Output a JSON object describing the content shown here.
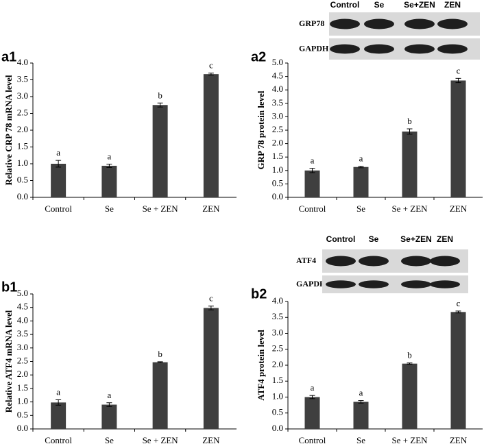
{
  "chart_data": [
    {
      "type": "bar",
      "panel": "a1",
      "ylabel": "Relative CRP 78 mRNA level",
      "categories": [
        "Control",
        "Se",
        "Se + ZEN",
        "ZEN"
      ],
      "values": [
        1.0,
        0.94,
        2.75,
        3.67
      ],
      "errors": [
        0.1,
        0.05,
        0.06,
        0.03
      ],
      "annotations": [
        "a",
        "a",
        "b",
        "c"
      ],
      "color": "#3f3f3f",
      "ylim": [
        0,
        4
      ],
      "yticks": [
        {
          "value": 0,
          "label": "0.0"
        },
        {
          "value": 0.5,
          "label": "0.5"
        },
        {
          "value": 1,
          "label": "1.0"
        },
        {
          "value": 1.5,
          "label": "1.5"
        },
        {
          "value": 2,
          "label": "2.0"
        },
        {
          "value": 2.5,
          "label": "2.5"
        },
        {
          "value": 3,
          "label": "3.0"
        },
        {
          "value": 3.5,
          "label": "3.5"
        },
        {
          "value": 4,
          "label": "4.0"
        }
      ]
    },
    {
      "type": "bar",
      "panel": "a2",
      "ylabel": "GRP 78 protein level",
      "categories": [
        "Control",
        "Se",
        "Se + ZEN",
        "ZEN"
      ],
      "values": [
        1.0,
        1.13,
        2.45,
        4.35
      ],
      "errors": [
        0.08,
        0.03,
        0.1,
        0.08
      ],
      "annotations": [
        "a",
        "a",
        "b",
        "c"
      ],
      "color": "#3f3f3f",
      "ylim": [
        0,
        5
      ],
      "yticks": [
        {
          "value": 0,
          "label": "0.0"
        },
        {
          "value": 0.5,
          "label": "0.5"
        },
        {
          "value": 1,
          "label": "1.0"
        },
        {
          "value": 1.5,
          "label": "1.5"
        },
        {
          "value": 2,
          "label": "2.0"
        },
        {
          "value": 2.5,
          "label": "2.5"
        },
        {
          "value": 3,
          "label": "3.0"
        },
        {
          "value": 3.5,
          "label": "3.5"
        },
        {
          "value": 4,
          "label": "4.0"
        },
        {
          "value": 4.5,
          "label": "4.5"
        },
        {
          "value": 5,
          "label": "5.0"
        }
      ],
      "blot": {
        "lanes": [
          "Control",
          "Se",
          "Se+ZEN",
          "ZEN"
        ],
        "rows": [
          "GRP78",
          "GAPDH"
        ]
      }
    },
    {
      "type": "bar",
      "panel": "b1",
      "ylabel": "Relative ATF4 mRNA level",
      "categories": [
        "Control",
        "Se",
        "Se + ZEN",
        "ZEN"
      ],
      "values": [
        0.98,
        0.9,
        2.47,
        4.48
      ],
      "errors": [
        0.1,
        0.07,
        0.02,
        0.07
      ],
      "annotations": [
        "a",
        "a",
        "b",
        "c"
      ],
      "color": "#3f3f3f",
      "ylim": [
        0,
        5
      ],
      "yticks": [
        {
          "value": 0,
          "label": "0.0"
        },
        {
          "value": 0.5,
          "label": "0.5"
        },
        {
          "value": 1,
          "label": "1.0"
        },
        {
          "value": 1.5,
          "label": "1.5"
        },
        {
          "value": 2,
          "label": "2.0"
        },
        {
          "value": 2.5,
          "label": "2.5"
        },
        {
          "value": 3,
          "label": "3.0"
        },
        {
          "value": 3.5,
          "label": "3.5"
        },
        {
          "value": 4,
          "label": "4.0"
        },
        {
          "value": 4.5,
          "label": "4.5"
        },
        {
          "value": 5,
          "label": "5.0"
        }
      ]
    },
    {
      "type": "bar",
      "panel": "b2",
      "ylabel": "ATF4 protein level",
      "categories": [
        "Control",
        "Se",
        "Se + ZEN",
        "ZEN"
      ],
      "values": [
        1.0,
        0.85,
        2.05,
        3.67
      ],
      "errors": [
        0.05,
        0.04,
        0.02,
        0.03
      ],
      "annotations": [
        "a",
        "a",
        "b",
        "c"
      ],
      "color": "#3f3f3f",
      "ylim": [
        0,
        4
      ],
      "yticks": [
        {
          "value": 0,
          "label": "0.0"
        },
        {
          "value": 0.5,
          "label": "0.5"
        },
        {
          "value": 1,
          "label": "1.0"
        },
        {
          "value": 1.5,
          "label": "1.5"
        },
        {
          "value": 2,
          "label": "2.0"
        },
        {
          "value": 2.5,
          "label": "2.5"
        },
        {
          "value": 3,
          "label": "3.0"
        },
        {
          "value": 3.5,
          "label": "3.5"
        },
        {
          "value": 4,
          "label": "4.0"
        }
      ],
      "blot": {
        "lanes": [
          "Control",
          "Se",
          "Se+ZEN",
          "ZEN"
        ],
        "rows": [
          "ATF4",
          "GAPDH"
        ]
      }
    }
  ]
}
